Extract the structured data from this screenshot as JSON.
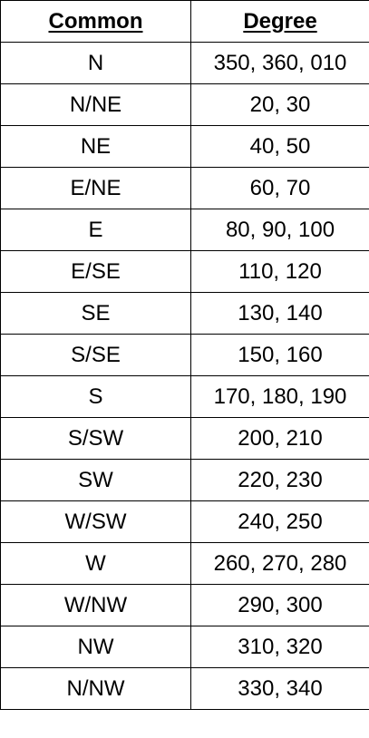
{
  "table": {
    "headers": {
      "common": "Common",
      "degree": "Degree"
    },
    "rows": [
      {
        "common": "N",
        "degree": "350, 360, 010"
      },
      {
        "common": "N/NE",
        "degree": "20, 30"
      },
      {
        "common": "NE",
        "degree": "40, 50"
      },
      {
        "common": "E/NE",
        "degree": "60, 70"
      },
      {
        "common": "E",
        "degree": "80, 90, 100"
      },
      {
        "common": "E/SE",
        "degree": "110, 120"
      },
      {
        "common": "SE",
        "degree": "130, 140"
      },
      {
        "common": "S/SE",
        "degree": "150, 160"
      },
      {
        "common": "S",
        "degree": "170, 180, 190"
      },
      {
        "common": "S/SW",
        "degree": "200, 210"
      },
      {
        "common": "SW",
        "degree": "220, 230"
      },
      {
        "common": "W/SW",
        "degree": "240, 250"
      },
      {
        "common": "W",
        "degree": "260, 270, 280"
      },
      {
        "common": "W/NW",
        "degree": "290, 300"
      },
      {
        "common": "NW",
        "degree": "310, 320"
      },
      {
        "common": "N/NW",
        "degree": "330, 340"
      }
    ]
  }
}
